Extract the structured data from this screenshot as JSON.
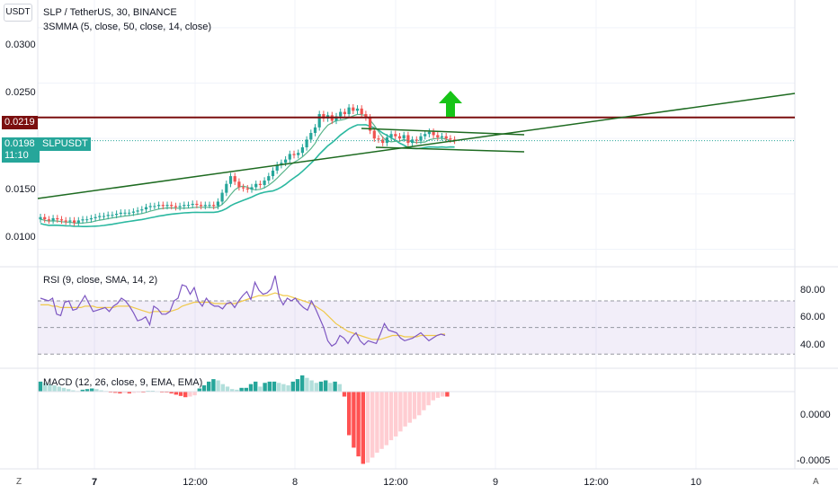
{
  "header": {
    "currency_button": "USDT",
    "symbol_title": "SLP / TetherUS, 30, BINANCE",
    "ma_indicator": "3SMMA (5, close, 50, close, 14, close)",
    "rsi_indicator": "RSI (9, close, SMA, 14, 2)",
    "macd_indicator": "MACD (12, 26, close, 9, EMA, EMA)"
  },
  "price_axis": {
    "ticks": [
      "0.0300",
      "0.0250",
      "0.0150",
      "0.0100"
    ],
    "resistance_label": "0.0219",
    "last_price_label": "0.0198",
    "symbol_tag": "SLPUSDT",
    "countdown": "11:10"
  },
  "rsi_axis": {
    "ticks": [
      "80.00",
      "60.00",
      "40.00"
    ]
  },
  "macd_axis": {
    "ticks": [
      "0.0000",
      "-0.0005"
    ]
  },
  "time_axis": {
    "ticks": [
      "7",
      "12:00",
      "8",
      "12:00",
      "9",
      "12:00",
      "10"
    ],
    "corner_left": "Z",
    "corner_right": "A"
  },
  "colors": {
    "up": "#26a69a",
    "down": "#ef5350",
    "resistance": "#7b0f0f",
    "trendline": "#1e6b21",
    "ma_fast": "#5ab58c",
    "ma_slow": "#2bb8a0",
    "rsi_line": "#7e57c2",
    "rsi_ma": "#f0c94a",
    "arrow": "#17c417"
  },
  "chart_data": {
    "type": "line",
    "title": "SLP / TetherUS, 30, BINANCE",
    "x": [
      "7",
      "12:00",
      "8",
      "12:00",
      "9",
      "12:00",
      "10"
    ],
    "price": {
      "ylim": [
        0.0085,
        0.0325
      ],
      "resistance": 0.0219,
      "last_price": 0.0198,
      "close": [
        0.0129,
        0.0127,
        0.0126,
        0.0128,
        0.0127,
        0.0126,
        0.0125,
        0.0126,
        0.0124,
        0.0126,
        0.0127,
        0.0127,
        0.0128,
        0.0129,
        0.013,
        0.013,
        0.0131,
        0.0131,
        0.0132,
        0.0133,
        0.0133,
        0.0133,
        0.0134,
        0.0135,
        0.0136,
        0.0138,
        0.0139,
        0.0139,
        0.014,
        0.0139,
        0.014,
        0.0139,
        0.0138,
        0.0139,
        0.014,
        0.014,
        0.0141,
        0.014,
        0.0139,
        0.014,
        0.014,
        0.0139,
        0.0143,
        0.0151,
        0.0159,
        0.0166,
        0.0161,
        0.0156,
        0.0155,
        0.0154,
        0.0156,
        0.0159,
        0.0158,
        0.0162,
        0.0166,
        0.0171,
        0.0176,
        0.0178,
        0.0181,
        0.0186,
        0.0185,
        0.0187,
        0.0192,
        0.0199,
        0.0205,
        0.021,
        0.0222,
        0.0218,
        0.0221,
        0.0216,
        0.022,
        0.0224,
        0.0222,
        0.0228,
        0.0225,
        0.0227,
        0.0222,
        0.0219,
        0.0207,
        0.02,
        0.0199,
        0.0196,
        0.0201,
        0.0204,
        0.0202,
        0.02,
        0.0203,
        0.0196,
        0.0199,
        0.0198,
        0.0202,
        0.0204,
        0.0206,
        0.0203,
        0.0201,
        0.0202,
        0.02,
        0.0199,
        0.0198
      ]
    },
    "rsi": {
      "ylim": [
        20,
        95
      ],
      "bands": [
        70,
        50,
        30
      ],
      "values": [
        72,
        71,
        70,
        72,
        60,
        59,
        69,
        70,
        63,
        64,
        69,
        74,
        68,
        62,
        63,
        64,
        65,
        62,
        66,
        68,
        72,
        70,
        66,
        61,
        55,
        56,
        58,
        52,
        66,
        64,
        60,
        60,
        62,
        70,
        72,
        82,
        81,
        75,
        80,
        70,
        66,
        72,
        68,
        66,
        66,
        64,
        68,
        69,
        65,
        70,
        74,
        77,
        71,
        84,
        78,
        75,
        76,
        79,
        89,
        73,
        67,
        72,
        70,
        72,
        68,
        65,
        63,
        70,
        64,
        57,
        50,
        40,
        36,
        38,
        44,
        42,
        38,
        43,
        46,
        40,
        37,
        40,
        39,
        38,
        45,
        53,
        48,
        47,
        46,
        42,
        40,
        41,
        42,
        44,
        46,
        43,
        40,
        42,
        44,
        45,
        44
      ]
    },
    "rsi_ma": {
      "values": [
        67,
        67,
        67,
        66,
        66,
        65,
        65,
        65,
        65,
        65,
        65,
        66,
        66,
        66,
        65,
        65,
        65,
        65,
        65,
        66,
        66,
        66,
        66,
        65,
        64,
        63,
        62,
        61,
        62,
        62,
        62,
        62,
        62,
        63,
        64,
        66,
        67,
        68,
        69,
        69,
        69,
        69,
        69,
        68,
        68,
        68,
        68,
        68,
        68,
        69,
        70,
        71,
        72,
        73,
        74,
        74,
        74,
        75,
        76,
        75,
        74,
        74,
        73,
        72,
        71,
        70,
        69,
        68,
        66,
        64,
        62,
        59,
        56,
        53,
        51,
        49,
        47,
        46,
        45,
        44,
        43,
        42,
        41,
        41,
        41,
        42,
        43,
        44,
        44,
        44,
        43,
        43,
        43,
        43,
        44,
        44,
        44,
        44,
        44,
        45,
        45
      ]
    },
    "macd_histogram": {
      "ylim": [
        -0.00062,
        0.00018
      ],
      "values": [
        8e-05,
        7e-05,
        6e-05,
        5e-05,
        4e-05,
        3e-05,
        2e-05,
        1e-05,
        5e-06,
        1.5e-05,
        2e-05,
        2.5e-05,
        2e-05,
        1e-05,
        5e-06,
        -5e-06,
        -1e-05,
        -1.5e-05,
        -1e-05,
        -1.5e-05,
        -1e-05,
        -5e-06,
        -5e-06,
        5e-06,
        5e-06,
        3e-06,
        -5e-06,
        -5e-06,
        -1.5e-05,
        -2.5e-05,
        -3.5e-05,
        -4.5e-05,
        -4e-05,
        -3e-05,
        2.5e-05,
        5e-05,
        8e-05,
        0.0001,
        9e-05,
        6e-05,
        4e-05,
        2e-05,
        1.5e-05,
        3e-05,
        3e-05,
        6e-05,
        8e-05,
        4e-05,
        7e-05,
        8e-05,
        8e-05,
        7e-05,
        6e-05,
        5e-05,
        8e-05,
        0.0001,
        0.00013,
        0.00011,
        9e-05,
        7e-05,
        8e-05,
        9e-05,
        7e-05,
        8e-05,
        6e-05,
        -4e-05,
        -0.00035,
        -0.00045,
        -0.00052,
        -0.00058,
        -0.00057,
        -0.00053,
        -0.00049,
        -0.00046,
        -0.00043,
        -0.00039,
        -0.00036,
        -0.00032,
        -0.00028,
        -0.00025,
        -0.00022,
        -0.00019,
        -0.00015,
        -0.00011,
        -7e-05,
        -5e-05,
        -4e-05,
        -4e-05
      ]
    }
  }
}
